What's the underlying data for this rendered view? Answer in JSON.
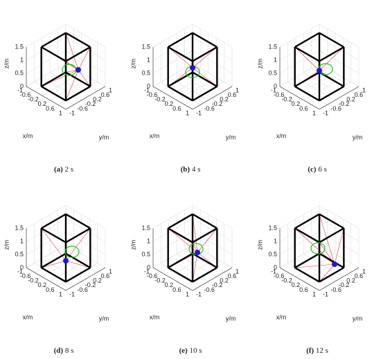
{
  "axes": {
    "xlabel": "x/m",
    "ylabel": "y/m",
    "zlabel": "z/m",
    "xticks": [
      -1,
      -0.6,
      -0.2,
      0.2,
      0.6,
      1
    ],
    "yticks": [
      -1,
      -0.6,
      -0.2,
      0.2,
      0.6,
      1
    ],
    "zticks": [
      0,
      0.5,
      1,
      1.5
    ]
  },
  "panels": [
    {
      "label": "(a)",
      "caption": "2 s"
    },
    {
      "label": "(b)",
      "caption": "4 s"
    },
    {
      "label": "(c)",
      "caption": "6 s"
    },
    {
      "label": "(d)",
      "caption": "8 s"
    },
    {
      "label": "(e)",
      "caption": "10 s"
    },
    {
      "label": "(f)",
      "caption": "12 s"
    }
  ]
}
